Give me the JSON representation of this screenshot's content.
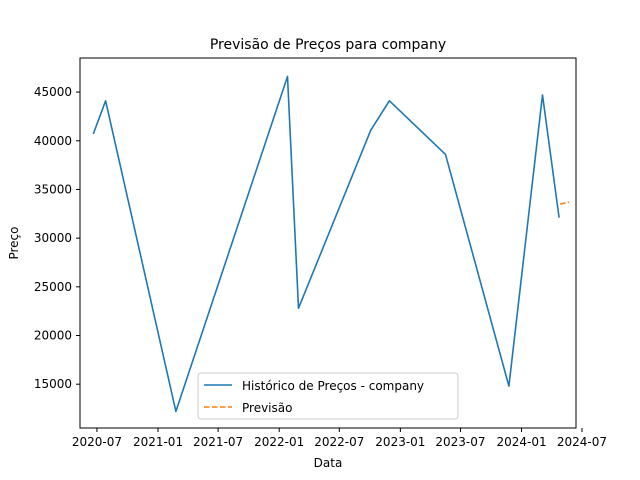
{
  "chart_data": {
    "type": "line",
    "title": "Previsão de Preços para company",
    "xlabel": "Data",
    "ylabel": "Preço",
    "x_ticks": [
      "2020-07",
      "2021-01",
      "2021-07",
      "2022-01",
      "2022-07",
      "2023-01",
      "2023-07",
      "2024-01",
      "2024-07"
    ],
    "x_tick_dates": [
      "2020-07-01",
      "2021-01-01",
      "2021-07-01",
      "2022-01-01",
      "2022-07-01",
      "2023-01-01",
      "2023-07-01",
      "2024-01-01",
      "2024-07-01"
    ],
    "y_ticks": [
      15000,
      20000,
      25000,
      30000,
      35000,
      40000,
      45000
    ],
    "xlim": [
      "2020-05-11",
      "2024-06-13"
    ],
    "ylim": [
      10500,
      48500
    ],
    "grid": false,
    "legend_position": "lower center",
    "series": [
      {
        "name": "Histórico de Preços - company",
        "color": "#1f77b4",
        "style": "solid",
        "points": [
          {
            "x": "2020-06-20",
            "y": 40700
          },
          {
            "x": "2020-07-27",
            "y": 44100
          },
          {
            "x": "2021-02-24",
            "y": 12200
          },
          {
            "x": "2022-01-26",
            "y": 46600
          },
          {
            "x": "2022-02-28",
            "y": 22800
          },
          {
            "x": "2022-10-04",
            "y": 41100
          },
          {
            "x": "2022-11-29",
            "y": 44100
          },
          {
            "x": "2023-05-17",
            "y": 38600
          },
          {
            "x": "2023-11-24",
            "y": 14800
          },
          {
            "x": "2024-03-04",
            "y": 44700
          },
          {
            "x": "2024-04-23",
            "y": 32100
          }
        ]
      },
      {
        "name": "Previsão",
        "color": "#ff7f0e",
        "style": "dashed",
        "points": [
          {
            "x": "2024-04-26",
            "y": 33500
          },
          {
            "x": "2024-05-23",
            "y": 33700
          }
        ]
      }
    ]
  }
}
